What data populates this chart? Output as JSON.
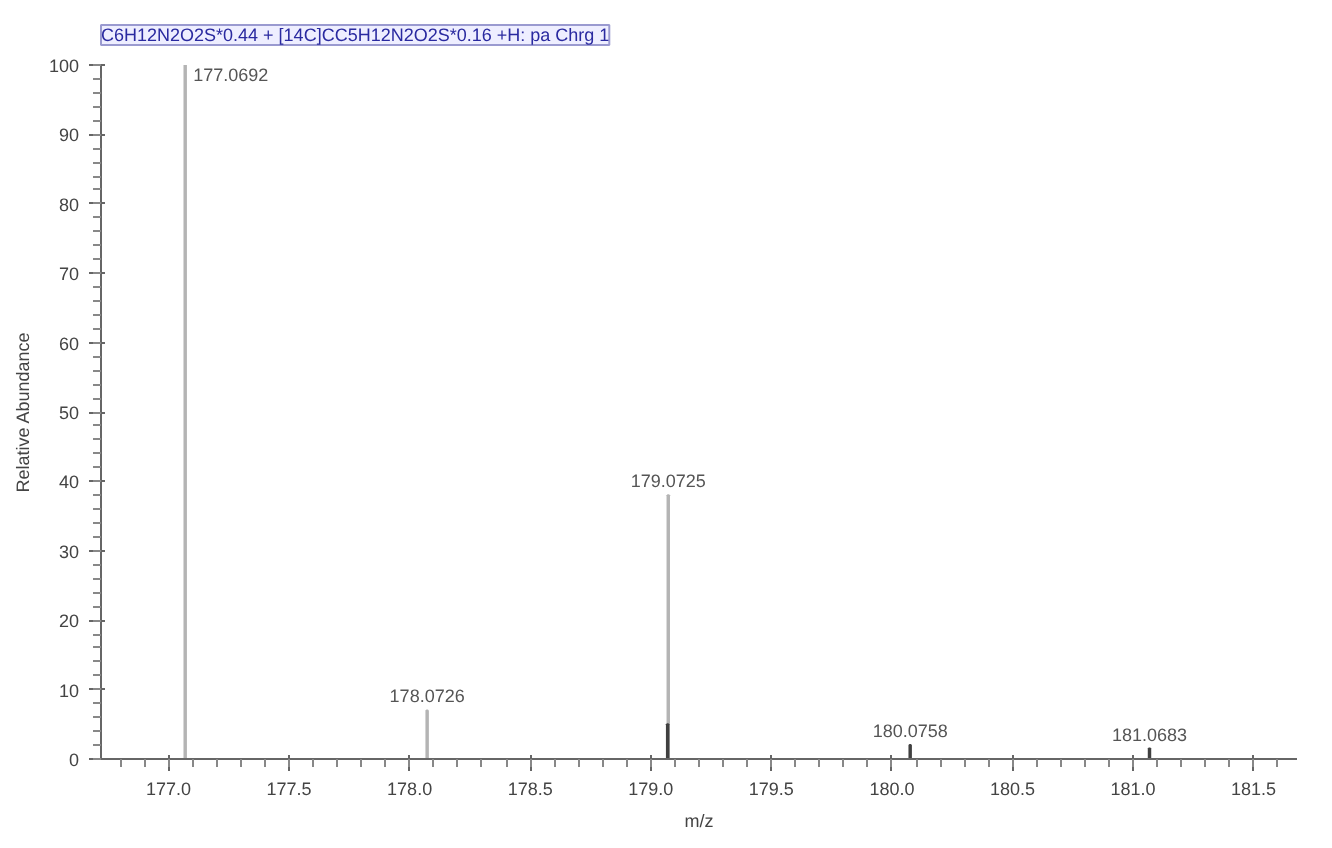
{
  "chart_data": {
    "type": "bar",
    "title": "C6H12N2O2S*0.44 + [14C]CC5H12N2O2S*0.16 +H: pa Chrg 1",
    "xlabel": "m/z",
    "ylabel": "Relative Abundance",
    "series": [
      {
        "color": "#b4b4b4",
        "x": [
          177.0692,
          178.0726,
          179.0725
        ],
        "values": [
          100,
          7,
          38
        ]
      },
      {
        "color": "#404040",
        "x": [
          179.07,
          180.0758,
          181.0683
        ],
        "values": [
          5,
          2,
          1.5
        ]
      }
    ],
    "xlim": [
      176.72,
      181.68
    ],
    "ylim": [
      0,
      100
    ],
    "xticks": [
      {
        "value": 177.0,
        "label": "177.0"
      },
      {
        "value": 177.5,
        "label": "177.5"
      },
      {
        "value": 178.0,
        "label": "178.0"
      },
      {
        "value": 178.5,
        "label": "178.5"
      },
      {
        "value": 179.0,
        "label": "179.0"
      },
      {
        "value": 179.5,
        "label": "179.5"
      },
      {
        "value": 180.0,
        "label": "180.0"
      },
      {
        "value": 180.5,
        "label": "180.5"
      },
      {
        "value": 181.0,
        "label": "181.0"
      },
      {
        "value": 181.5,
        "label": "181.5"
      }
    ],
    "yticks": [
      0,
      10,
      20,
      30,
      40,
      50,
      60,
      70,
      80,
      90,
      100
    ],
    "annotations": [
      {
        "text": "177.0692",
        "x": 177.0692,
        "y": 100
      },
      {
        "text": "178.0726",
        "x": 178.0726,
        "y": 7
      },
      {
        "text": "179.0725",
        "x": 179.0725,
        "y": 38
      },
      {
        "text": "180.0758",
        "x": 180.0758,
        "y": 2
      },
      {
        "text": "181.0683",
        "x": 181.0683,
        "y": 1.5
      }
    ]
  }
}
